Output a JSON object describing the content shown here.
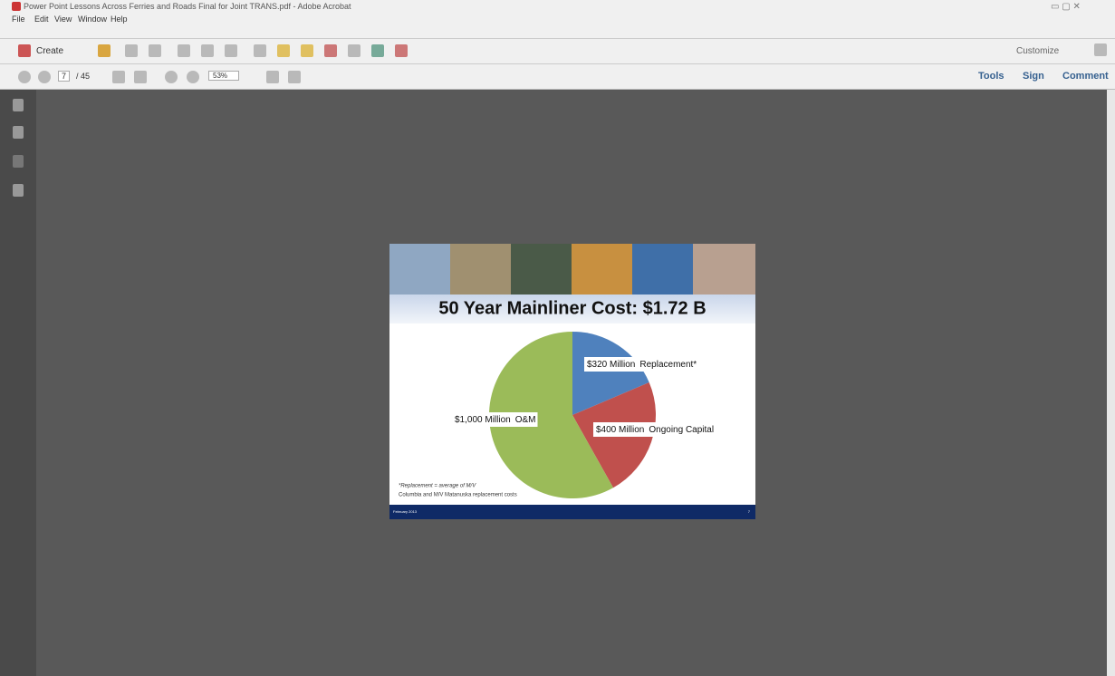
{
  "window": {
    "title": "Power Point Lessons Across Ferries and Roads Final for Joint TRANS.pdf - Adobe Acrobat"
  },
  "menu": [
    "File",
    "Edit",
    "View",
    "Window",
    "Help"
  ],
  "toolbar": {
    "create": "Create",
    "customize": "Customize",
    "page": "7",
    "page_count": "/ 45",
    "zoom": "53%",
    "tools": "Tools",
    "sign": "Sign",
    "comment": "Comment"
  },
  "slide": {
    "footnote": [
      "*Replacement = average of M/V",
      "Columbia and M/V Matanuska replacement costs"
    ],
    "footer": "February 2013",
    "page_number": "7"
  },
  "chart_data": {
    "type": "pie",
    "title": "50 Year Mainliner Cost: $1.72 B",
    "categories": [
      "Replacement*",
      "Ongoing Capital",
      "O&M"
    ],
    "values": [
      320,
      400,
      1000
    ],
    "value_labels": [
      "$320 Million",
      "$400 Million",
      "$1,000 Million"
    ],
    "colors": [
      "#4f81bd",
      "#c0504d",
      "#9bbb59"
    ]
  }
}
